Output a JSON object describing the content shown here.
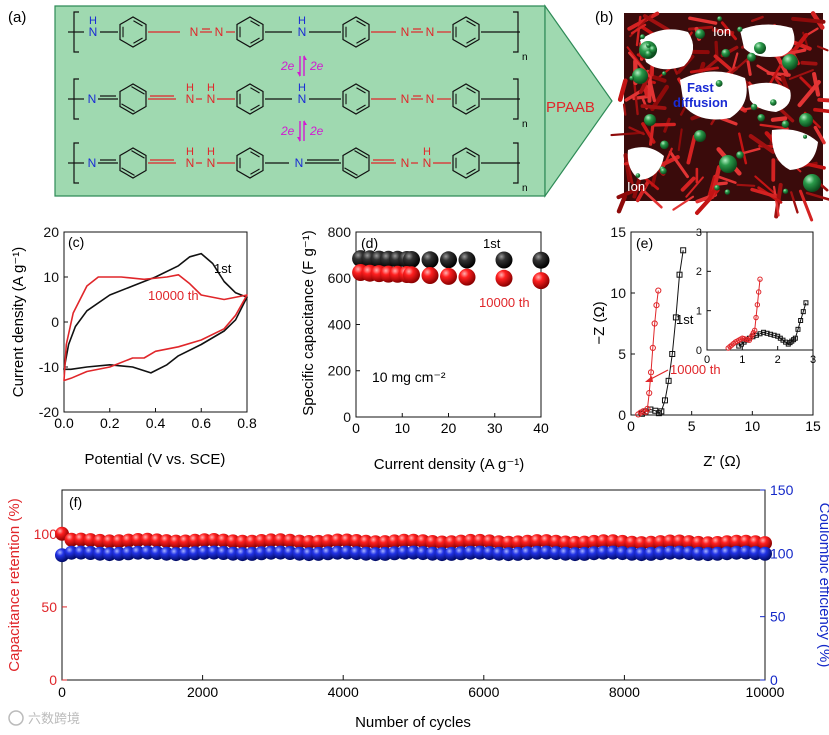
{
  "colors": {
    "black": "#111111",
    "red": "#e0262a",
    "blue": "#1428c8",
    "scheme_bg": "#9fd9b0",
    "scheme_border": "#2e8b57",
    "magenta": "#d11bd1",
    "azo": "#e0262a",
    "nitrogen": "#1a2bd4"
  },
  "panel_a": {
    "label": "(a)",
    "polymer_name": "PPAAB",
    "electron_label": "2e",
    "atoms": {
      "H": "H",
      "N": "N",
      "repeat": "n"
    }
  },
  "panel_b": {
    "label": "(b)",
    "annotation": "Fast diffusion",
    "annotation_line1": "Fast",
    "annotation_line2": "diffusion",
    "ion_label": "Ion"
  },
  "chart_data": [
    {
      "panel": "(c)",
      "type": "line",
      "title": "",
      "xlabel": "Potential (V vs. SCE)",
      "ylabel": "Current density (A g⁻¹)",
      "xlim": [
        0,
        0.8
      ],
      "ylim": [
        -20,
        20
      ],
      "xticks": [
        "0.0",
        "0.2",
        "0.4",
        "0.6",
        "0.8"
      ],
      "yticks": [
        "-20",
        "-10",
        "0",
        "10",
        "20"
      ],
      "series": [
        {
          "name": "1st",
          "color": "black",
          "anodic": [
            [
              0.0,
              -10.5
            ],
            [
              0.02,
              -5
            ],
            [
              0.05,
              -1
            ],
            [
              0.1,
              2.5
            ],
            [
              0.2,
              6
            ],
            [
              0.3,
              8
            ],
            [
              0.4,
              10
            ],
            [
              0.5,
              12.5
            ],
            [
              0.55,
              14.5
            ],
            [
              0.6,
              15.2
            ],
            [
              0.65,
              13
            ],
            [
              0.7,
              9
            ],
            [
              0.75,
              6.5
            ],
            [
              0.8,
              5.5
            ]
          ],
          "cathodic": [
            [
              0.8,
              5.5
            ],
            [
              0.75,
              0.5
            ],
            [
              0.7,
              -2
            ],
            [
              0.6,
              -5
            ],
            [
              0.5,
              -7.5
            ],
            [
              0.45,
              -9.5
            ],
            [
              0.38,
              -11.3
            ],
            [
              0.3,
              -10
            ],
            [
              0.2,
              -9.5
            ],
            [
              0.1,
              -10
            ],
            [
              0.03,
              -10.5
            ],
            [
              0.0,
              -10.5
            ]
          ]
        },
        {
          "name": "10000 th",
          "color": "red",
          "anodic": [
            [
              0.0,
              -13
            ],
            [
              0.01,
              -5
            ],
            [
              0.04,
              2
            ],
            [
              0.1,
              8
            ],
            [
              0.15,
              10
            ],
            [
              0.25,
              10
            ],
            [
              0.35,
              9.5
            ],
            [
              0.45,
              10
            ],
            [
              0.5,
              10.5
            ],
            [
              0.55,
              8.5
            ],
            [
              0.6,
              6
            ],
            [
              0.7,
              5
            ],
            [
              0.8,
              6
            ]
          ],
          "cathodic": [
            [
              0.8,
              6
            ],
            [
              0.75,
              1.5
            ],
            [
              0.7,
              -1.5
            ],
            [
              0.6,
              -4
            ],
            [
              0.5,
              -5.5
            ],
            [
              0.4,
              -6.5
            ],
            [
              0.35,
              -8
            ],
            [
              0.3,
              -8
            ],
            [
              0.2,
              -10
            ],
            [
              0.1,
              -11
            ],
            [
              0.03,
              -12.5
            ],
            [
              0.0,
              -13
            ]
          ]
        }
      ],
      "annotations": [
        "1st",
        "10000 th"
      ]
    },
    {
      "panel": "(d)",
      "type": "scatter",
      "xlabel": "Current density (A g⁻¹)",
      "ylabel": "Specific capacitance (F g⁻¹)",
      "xlim": [
        0,
        40
      ],
      "ylim": [
        0,
        800
      ],
      "xticks": [
        "0",
        "10",
        "20",
        "30",
        "40"
      ],
      "yticks": [
        "0",
        "200",
        "400",
        "600",
        "800"
      ],
      "x": [
        1,
        3,
        5,
        7,
        9,
        11,
        12,
        16,
        20,
        24,
        32,
        40
      ],
      "series": [
        {
          "name": "1st",
          "color": "black",
          "values": [
            685,
            684,
            683,
            682,
            682,
            681,
            681,
            680,
            680,
            679,
            679,
            678
          ]
        },
        {
          "name": "10000 th",
          "color": "red",
          "values": [
            625,
            622,
            620,
            618,
            617,
            616,
            615,
            612,
            608,
            605,
            600,
            590
          ]
        }
      ],
      "annotation": "10 mg cm⁻²",
      "labels": [
        "1st",
        "10000 th"
      ]
    },
    {
      "panel": "(e)",
      "type": "line",
      "xlabel": "Z' (Ω)",
      "ylabel": "−Z (Ω)",
      "xlim": [
        0,
        15
      ],
      "ylim": [
        0,
        15
      ],
      "xticks": [
        "0",
        "5",
        "10",
        "15"
      ],
      "yticks": [
        "0",
        "5",
        "10",
        "15"
      ],
      "series": [
        {
          "name": "1st",
          "color": "black",
          "marker": "square",
          "points": [
            [
              0.9,
              0.1
            ],
            [
              1.2,
              0.3
            ],
            [
              1.6,
              0.45
            ],
            [
              2.0,
              0.35
            ],
            [
              2.3,
              0.15
            ],
            [
              2.5,
              0.3
            ],
            [
              2.8,
              1.2
            ],
            [
              3.1,
              2.8
            ],
            [
              3.4,
              5
            ],
            [
              3.7,
              8
            ],
            [
              4.0,
              11.5
            ],
            [
              4.3,
              13.5
            ]
          ]
        },
        {
          "name": "10000 th",
          "color": "red",
          "marker": "circle",
          "points": [
            [
              0.6,
              0.05
            ],
            [
              0.8,
              0.2
            ],
            [
              1.0,
              0.3
            ],
            [
              1.2,
              0.25
            ],
            [
              1.35,
              0.5
            ],
            [
              1.5,
              1.8
            ],
            [
              1.65,
              3.5
            ],
            [
              1.8,
              5.5
            ],
            [
              1.95,
              7.5
            ],
            [
              2.1,
              9.0
            ],
            [
              2.25,
              10.2
            ]
          ]
        }
      ],
      "inset": {
        "xlim": [
          0,
          3
        ],
        "ylim": [
          0,
          3
        ],
        "xticks": [
          "0",
          "1",
          "2",
          "3"
        ],
        "yticks": [
          "0",
          "1",
          "2",
          "3"
        ]
      },
      "labels": [
        "1st",
        "10000 th"
      ]
    },
    {
      "panel": "(f)",
      "type": "scatter",
      "xlabel": "Number of cycles",
      "ylabel": "Capacitance retention (%)",
      "y2label": "Coulombic efficiency (%)",
      "xlim": [
        0,
        10000
      ],
      "ylim": [
        0,
        130
      ],
      "y2lim": [
        0,
        150
      ],
      "xticks": [
        "0",
        "2000",
        "4000",
        "6000",
        "8000",
        "10000"
      ],
      "yticks": [
        "0",
        "50",
        "100"
      ],
      "y2ticks": [
        "0",
        "50",
        "100",
        "150"
      ],
      "series": [
        {
          "name": "Capacitance retention",
          "color": "red",
          "axis": "left",
          "start": 100,
          "mean": 95.5,
          "end": 94
        },
        {
          "name": "Coulombic efficiency",
          "color": "blue",
          "axis": "right",
          "start": 98.5,
          "mean": 100,
          "end": 100
        }
      ]
    }
  ],
  "watermark": "六数跨境"
}
